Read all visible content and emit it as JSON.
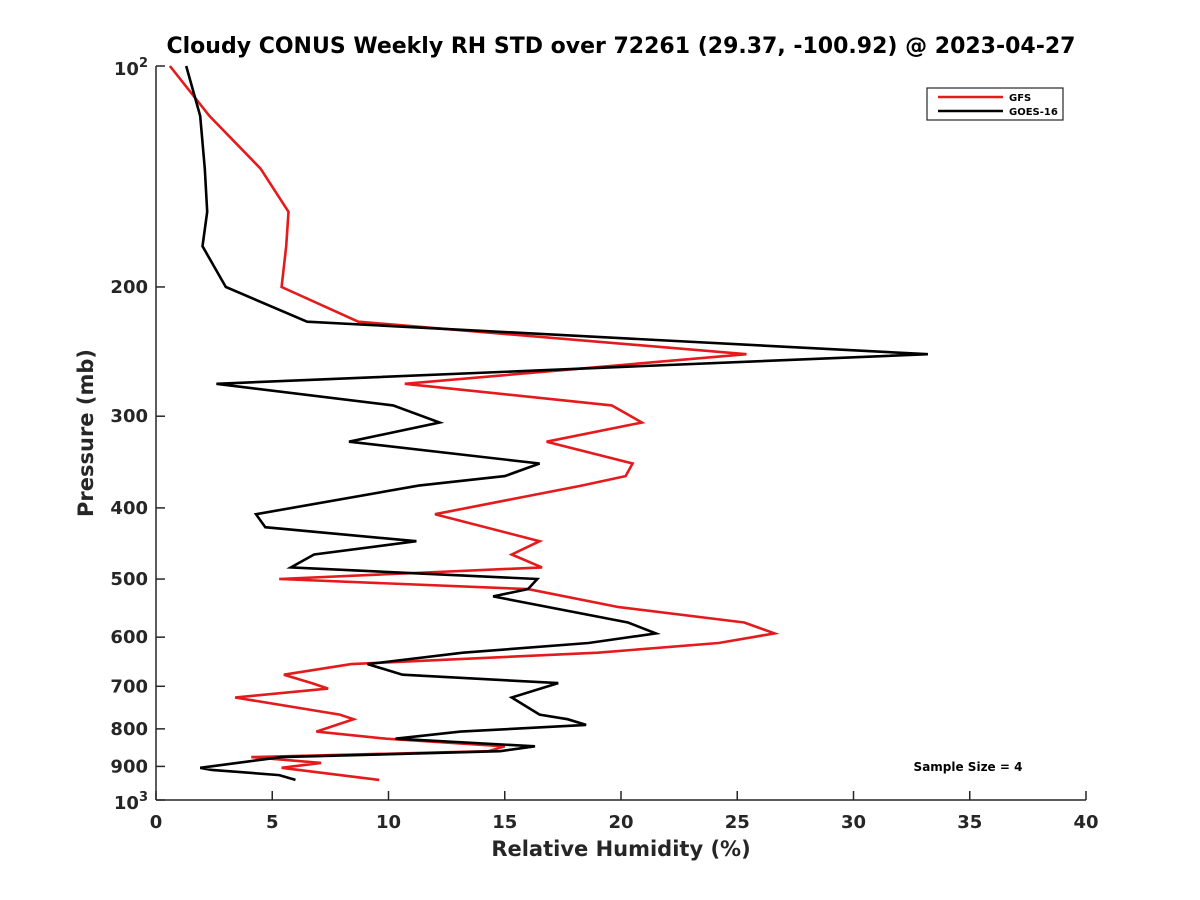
{
  "chart_data": {
    "type": "line",
    "title": "Cloudy CONUS Weekly RH STD over 72261 (29.37, -100.92) @ 2023-04-27",
    "xlabel": "Relative Humidity (%)",
    "ylabel": "Pressure (mb)",
    "xlim": [
      0,
      40
    ],
    "ylim": [
      100,
      1000
    ],
    "yscale": "log",
    "y_reversed": true,
    "grid": false,
    "legend_position": "top-right",
    "x_ticks": [
      "0",
      "5",
      "10",
      "15",
      "20",
      "25",
      "30",
      "35",
      "40"
    ],
    "y_ticks": [
      {
        "value": 100,
        "base": "10",
        "exp": "2"
      },
      {
        "value": 200,
        "label": "200"
      },
      {
        "value": 300,
        "label": "300"
      },
      {
        "value": 400,
        "label": "400"
      },
      {
        "value": 500,
        "label": "500"
      },
      {
        "value": 600,
        "label": "600"
      },
      {
        "value": 700,
        "label": "700"
      },
      {
        "value": 800,
        "label": "800"
      },
      {
        "value": 900,
        "label": "900"
      },
      {
        "value": 1000,
        "base": "10",
        "exp": "3"
      }
    ],
    "annotation": "Sample Size = 4",
    "series": [
      {
        "name": "GFS",
        "color": "#e41a1c",
        "points": [
          [
            0.6,
            100
          ],
          [
            2.3,
            117
          ],
          [
            4.5,
            138
          ],
          [
            5.7,
            158
          ],
          [
            5.6,
            176
          ],
          [
            5.4,
            200
          ],
          [
            8.7,
            223
          ],
          [
            25.4,
            247
          ],
          [
            10.7,
            271
          ],
          [
            19.6,
            290
          ],
          [
            20.9,
            306
          ],
          [
            16.8,
            325
          ],
          [
            20.5,
            348
          ],
          [
            20.2,
            362
          ],
          [
            18.3,
            373
          ],
          [
            12.0,
            408
          ],
          [
            16.5,
            444
          ],
          [
            15.3,
            463
          ],
          [
            16.6,
            482
          ],
          [
            5.3,
            500
          ],
          [
            16.0,
            516
          ],
          [
            19.9,
            546
          ],
          [
            25.3,
            573
          ],
          [
            26.6,
            593
          ],
          [
            24.2,
            611
          ],
          [
            19.0,
            630
          ],
          [
            8.4,
            653
          ],
          [
            5.5,
            675
          ],
          [
            6.7,
            693
          ],
          [
            7.4,
            705
          ],
          [
            3.4,
            725
          ],
          [
            7.9,
            765
          ],
          [
            8.5,
            776
          ],
          [
            6.9,
            807
          ],
          [
            9.9,
            825
          ],
          [
            15.0,
            845
          ],
          [
            14.3,
            858
          ],
          [
            4.1,
            874
          ],
          [
            7.1,
            890
          ],
          [
            5.4,
            904
          ],
          [
            9.6,
            939
          ]
        ]
      },
      {
        "name": "GOES-16",
        "color": "#000000",
        "points": [
          [
            1.3,
            100
          ],
          [
            1.9,
            117
          ],
          [
            2.1,
            138
          ],
          [
            2.2,
            158
          ],
          [
            2.0,
            176
          ],
          [
            3.0,
            200
          ],
          [
            6.5,
            223
          ],
          [
            33.2,
            247
          ],
          [
            2.6,
            271
          ],
          [
            10.2,
            290
          ],
          [
            12.2,
            306
          ],
          [
            8.3,
            325
          ],
          [
            16.5,
            348
          ],
          [
            15.0,
            362
          ],
          [
            11.3,
            373
          ],
          [
            4.3,
            408
          ],
          [
            4.7,
            425
          ],
          [
            11.2,
            444
          ],
          [
            6.8,
            463
          ],
          [
            5.8,
            482
          ],
          [
            16.4,
            500
          ],
          [
            16.0,
            516
          ],
          [
            14.5,
            528
          ],
          [
            20.3,
            573
          ],
          [
            21.5,
            593
          ],
          [
            18.6,
            611
          ],
          [
            13.2,
            630
          ],
          [
            9.1,
            653
          ],
          [
            10.6,
            675
          ],
          [
            17.3,
            693
          ],
          [
            15.3,
            725
          ],
          [
            16.5,
            765
          ],
          [
            17.7,
            776
          ],
          [
            18.5,
            790
          ],
          [
            13.1,
            807
          ],
          [
            10.3,
            825
          ],
          [
            16.3,
            845
          ],
          [
            14.8,
            858
          ],
          [
            5.4,
            874
          ],
          [
            1.9,
            904
          ],
          [
            2.4,
            910
          ],
          [
            5.3,
            925
          ],
          [
            6.0,
            939
          ]
        ]
      }
    ]
  }
}
